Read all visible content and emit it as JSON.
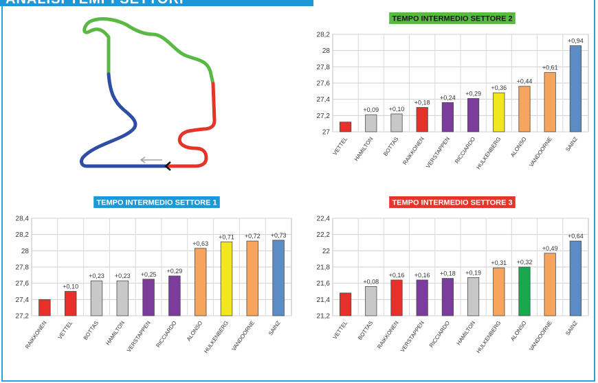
{
  "banner": {
    "text_main": "ANALISI TEMPI SETTORI",
    "text_accent": ""
  },
  "colors": {
    "ferrari_red": "#e8302a",
    "mercedes_gray": "#c8c8c8",
    "redbull_purple": "#7c3c9c",
    "renault_yellow": "#f2e61e",
    "mclaren_orange": "#f7a45c",
    "toro_blue": "#5b8cc6",
    "sauber_green": "#1aa84f",
    "sector1": "#2e6fb6",
    "sector2": "#5ab845",
    "sector3": "#e5352b"
  },
  "chart_data": [
    {
      "id": "s2",
      "type": "bar",
      "title": "TEMPO INTERMEDIO SETTORE 2",
      "title_bg": "#5ab845",
      "title_color": "#1a1a1a",
      "categories": [
        "VETTEL",
        "HAMILTON",
        "BOTTAS",
        "RAIKKONEN",
        "VERSTAPPEN",
        "RICCIARDO",
        "HULKENBERG",
        "ALONSO",
        "VANDOORNE",
        "SAINZ"
      ],
      "values": [
        27.12,
        27.21,
        27.22,
        27.3,
        27.36,
        27.41,
        27.48,
        27.56,
        27.73,
        28.06
      ],
      "labels": [
        "",
        "+0,09",
        "+0,10",
        "+0,18",
        "+0,24",
        "+0,29",
        "+0,36",
        "+0,44",
        "+0,61",
        "+0,94"
      ],
      "colors": [
        "#e8302a",
        "#c8c8c8",
        "#c8c8c8",
        "#e8302a",
        "#7c3c9c",
        "#7c3c9c",
        "#f2e61e",
        "#f7a45c",
        "#f7a45c",
        "#5b8cc6"
      ],
      "ylim": [
        27,
        28.2
      ],
      "yticks": [
        "27",
        "27,2",
        "27,4",
        "27,6",
        "27,8",
        "28",
        "28,2"
      ],
      "grid": true
    },
    {
      "id": "s1",
      "type": "bar",
      "title": "TEMPO INTERMEDIO SETTORE 1",
      "title_bg": "#1d98d6",
      "title_color": "#ffffff",
      "categories": [
        "RAIKKONEN",
        "VETTEL",
        "BOTTAS",
        "HAMILTON",
        "VERSTAPPEN",
        "RICCIARDO",
        "ALONSO",
        "HULKENBERG",
        "VANDOORNE",
        "SAINZ"
      ],
      "values": [
        27.4,
        27.5,
        27.63,
        27.63,
        27.65,
        27.69,
        28.03,
        28.11,
        28.12,
        28.13
      ],
      "labels": [
        "",
        "+0,10",
        "+0,23",
        "+0,23",
        "+0,25",
        "+0,29",
        "+0,63",
        "+0,71",
        "+0,72",
        "+0,73"
      ],
      "colors": [
        "#e8302a",
        "#e8302a",
        "#c8c8c8",
        "#c8c8c8",
        "#7c3c9c",
        "#7c3c9c",
        "#f7a45c",
        "#f2e61e",
        "#f7a45c",
        "#5b8cc6"
      ],
      "ylim": [
        27.2,
        28.4
      ],
      "yticks": [
        "27,2",
        "27,4",
        "27,6",
        "27,8",
        "28",
        "28,2",
        "28,4"
      ],
      "grid": true
    },
    {
      "id": "s3",
      "type": "bar",
      "title": "TEMPO INTERMEDIO SETTORE 3",
      "title_bg": "#e5352b",
      "title_color": "#ffffff",
      "categories": [
        "VETTEL",
        "BOTTAS",
        "RAIKKONEN",
        "VERSTAPPEN",
        "RICCIARDO",
        "HAMILTON",
        "HULKENBERG",
        "ALONSO",
        "VANDOORNE",
        "SAINZ"
      ],
      "values": [
        21.48,
        21.56,
        21.64,
        21.64,
        21.66,
        21.67,
        21.79,
        21.8,
        21.97,
        22.12
      ],
      "labels": [
        "",
        "+0,08",
        "+0,16",
        "+0,16",
        "+0,18",
        "+0,19",
        "+0,31",
        "+0,32",
        "+0,49",
        "+0,64"
      ],
      "colors": [
        "#e8302a",
        "#c8c8c8",
        "#e8302a",
        "#7c3c9c",
        "#7c3c9c",
        "#c8c8c8",
        "#f7a45c",
        "#1aa84f",
        "#f7a45c",
        "#5b8cc6"
      ],
      "ylim": [
        21.2,
        22.4
      ],
      "yticks": [
        "21,2",
        "21,4",
        "21,6",
        "21,8",
        "22",
        "22,2",
        "22,4"
      ],
      "grid": true
    }
  ]
}
